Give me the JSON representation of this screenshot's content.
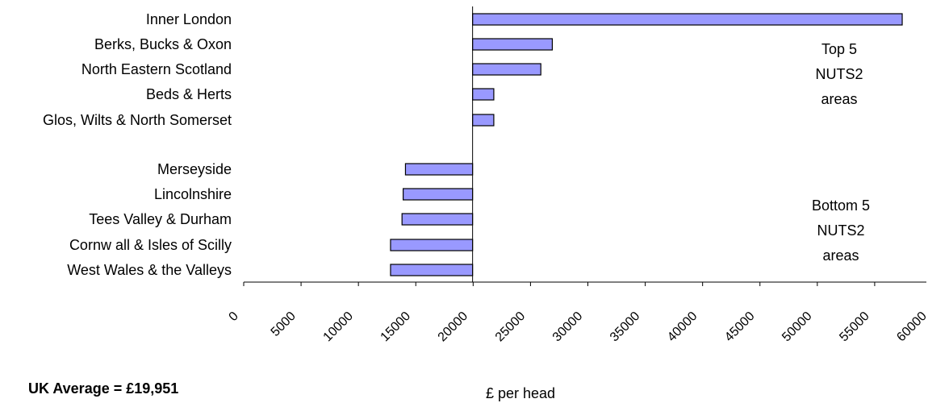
{
  "chart_data": {
    "type": "bar",
    "orientation": "horizontal",
    "baseline": 19951,
    "categories": [
      "Inner London",
      "Berks, Bucks & Oxon",
      "North Eastern Scotland",
      "Beds & Herts",
      "Glos, Wilts & North Somerset",
      "Merseyside",
      "Lincolnshire",
      "Tees Valley & Durham",
      "Cornw all & Isles of Scilly",
      "West Wales & the Valleys"
    ],
    "values": [
      57400,
      26900,
      25900,
      21800,
      21800,
      14100,
      13900,
      13800,
      12800,
      12800
    ],
    "xlim": [
      0,
      60000
    ],
    "xticks": [
      "0",
      "5000",
      "10000",
      "15000",
      "20000",
      "25000",
      "30000",
      "35000",
      "40000",
      "45000",
      "50000",
      "55000",
      "60000"
    ],
    "xlabel": "£ per head",
    "annotations": {
      "top_group": [
        "Top 5",
        "NUTS2",
        "areas"
      ],
      "bottom_group": [
        "Bottom 5",
        "NUTS2",
        "areas"
      ],
      "uk_average": "UK Average = £19,951"
    },
    "bar_color": "#9999ff",
    "bar_outline": "#000000"
  }
}
